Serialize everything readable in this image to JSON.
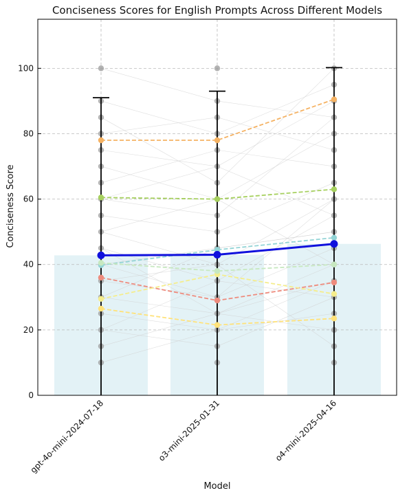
{
  "chart_data": {
    "type": "line",
    "title": "Conciseness Scores for English Prompts Across Different Models",
    "xlabel": "Model",
    "ylabel": "Conciseness Score",
    "categories": [
      "gpt-4o-mini-2024-07-18",
      "o3-mini-2025-01-31",
      "o4-mini-2025-04-16"
    ],
    "ylim": [
      0,
      115
    ],
    "yticks": [
      0,
      20,
      40,
      60,
      80,
      100
    ],
    "grid": true,
    "colors": {
      "bar": "#e3f2f6",
      "mean_line": "#1010dd",
      "error_bar": "#000000",
      "points": "#9a9a9a",
      "background_lines": "#d0d0d0"
    },
    "bars": [
      42.8,
      43.0,
      46.3
    ],
    "mean": [
      42.8,
      43.0,
      46.3
    ],
    "error_bars": [
      {
        "low": 0,
        "high": 91
      },
      {
        "low": 0,
        "high": 93
      },
      {
        "low": 0,
        "high": 100.2
      }
    ],
    "highlight_series": [
      {
        "color": "#f5b263",
        "values": [
          78,
          78,
          90.5
        ]
      },
      {
        "color": "#a6d05e",
        "values": [
          60.5,
          60,
          63
        ]
      },
      {
        "color": "#93d4d6",
        "values": [
          39.8,
          44.5,
          48.2
        ]
      },
      {
        "color": "#ee8b7d",
        "values": [
          36,
          29,
          34.5
        ]
      },
      {
        "color": "#f5ed8c",
        "values": [
          29.5,
          37,
          31
        ]
      },
      {
        "color": "#ffe27a",
        "values": [
          26.5,
          21.5,
          23.5
        ]
      },
      {
        "color": "#c7e8c0",
        "values": [
          40.5,
          38,
          40
        ]
      }
    ],
    "points": [
      [
        100,
        90,
        85,
        80,
        75,
        70,
        65,
        60,
        55,
        50,
        45,
        40,
        35,
        30,
        25,
        20,
        15,
        10
      ],
      [
        100,
        90,
        85,
        80,
        75,
        70,
        65,
        60,
        55,
        50,
        45,
        40,
        35,
        30,
        25,
        20,
        15,
        10
      ],
      [
        100,
        95,
        90,
        85,
        80,
        75,
        70,
        65,
        60,
        55,
        50,
        45,
        40,
        35,
        30,
        25,
        20,
        15,
        10
      ]
    ],
    "background_lines": [
      [
        100,
        90,
        85
      ],
      [
        90,
        80,
        95
      ],
      [
        85,
        65,
        100
      ],
      [
        80,
        85,
        75
      ],
      [
        75,
        70,
        90
      ],
      [
        70,
        60,
        80
      ],
      [
        65,
        75,
        70
      ],
      [
        60,
        55,
        85
      ],
      [
        55,
        50,
        65
      ],
      [
        50,
        40,
        60
      ],
      [
        45,
        35,
        55
      ],
      [
        40,
        45,
        50
      ],
      [
        35,
        30,
        45
      ],
      [
        30,
        25,
        40
      ],
      [
        25,
        20,
        35
      ],
      [
        20,
        15,
        30
      ],
      [
        15,
        25,
        20
      ],
      [
        10,
        20,
        25
      ],
      [
        50,
        60,
        40
      ],
      [
        40,
        30,
        60
      ],
      [
        30,
        45,
        50
      ],
      [
        20,
        35,
        30
      ],
      [
        60,
        70,
        55
      ],
      [
        35,
        40,
        15
      ],
      [
        45,
        25,
        35
      ]
    ]
  }
}
